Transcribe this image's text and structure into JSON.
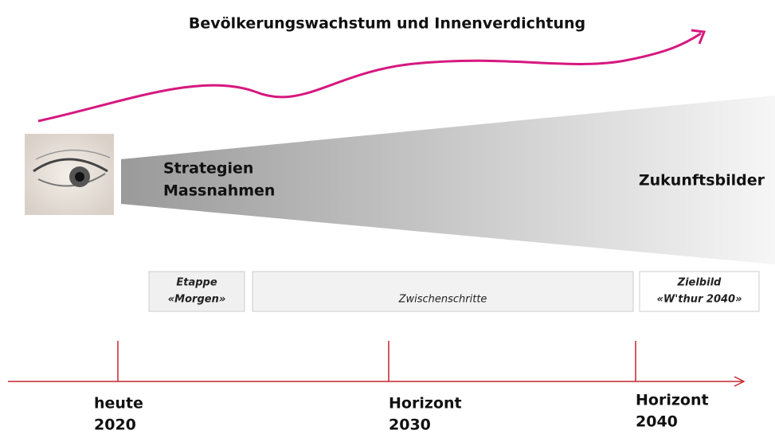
{
  "title": "Bevölkerungswachstum und Innenverdichtung",
  "wedge": {
    "left_lines": [
      "Strategien",
      "Massnahmen"
    ],
    "right": "Zukunftsbilder"
  },
  "phases": [
    {
      "lines": [
        "Etappe",
        "«Morgen»"
      ]
    },
    {
      "lines": [
        "Zwischenschritte"
      ]
    },
    {
      "lines": [
        "Zielbild",
        "«W'thur 2040»"
      ]
    }
  ],
  "milestones": [
    {
      "lines": [
        "heute",
        "2020"
      ]
    },
    {
      "lines": [
        "Horizont",
        "2030"
      ]
    },
    {
      "lines": [
        "Horizont",
        "2040"
      ]
    }
  ]
}
